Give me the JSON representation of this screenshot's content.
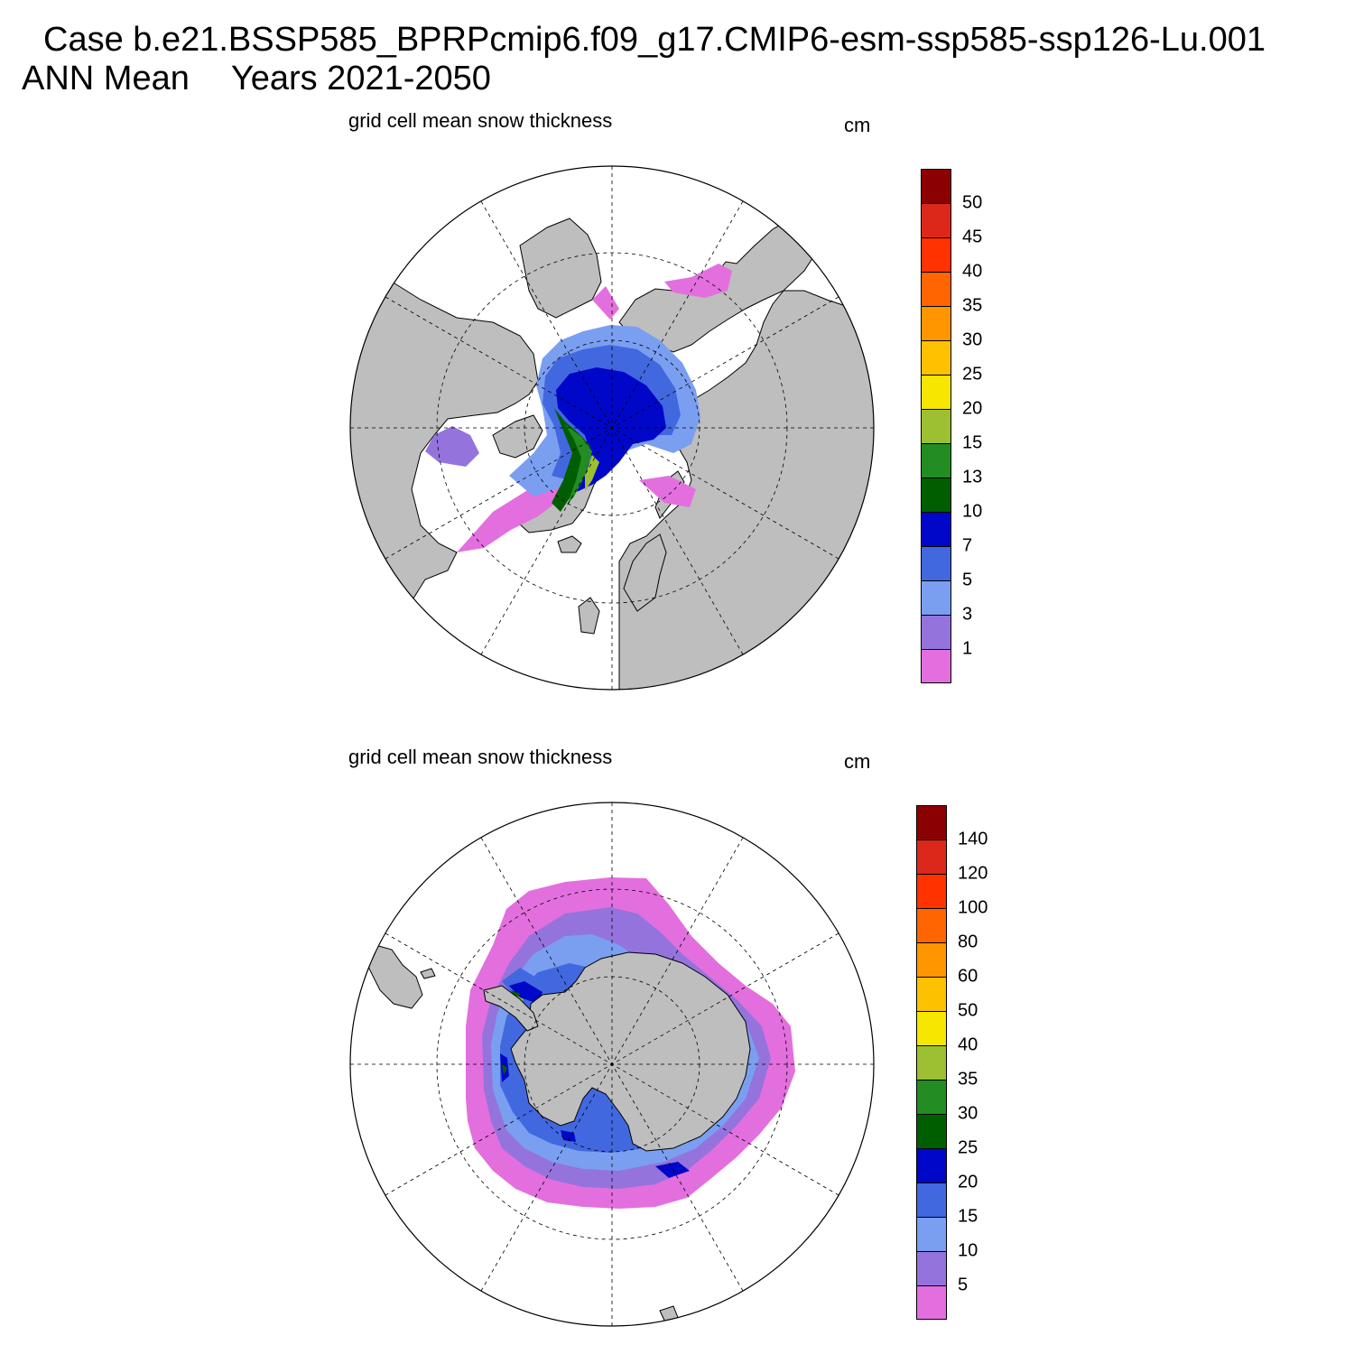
{
  "header": {
    "case_line": "Case b.e21.BSSP585_BPRPcmip6.f09_g17.CMIP6-esm-ssp585-ssp126-Lu.001",
    "period": "ANN Mean",
    "years": "Years 2021-2050"
  },
  "colors": {
    "land": "#bebebe",
    "ocean_no_data": "#ffffff",
    "palette": [
      "#e36fde",
      "#9474dc",
      "#7b9ff0",
      "#4268e0",
      "#0007c8",
      "#005e00",
      "#238c23",
      "#9dc032",
      "#f6e600",
      "#fdc100",
      "#ff9600",
      "#ff6500",
      "#ff3200",
      "#dc281b",
      "#8b0000"
    ]
  },
  "panels": [
    {
      "id": "north",
      "hemisphere": "Northern",
      "title": "grid cell mean snow thickness",
      "units": "cm",
      "colorbar_levels": [
        "1",
        "3",
        "5",
        "7",
        "10",
        "13",
        "15",
        "20",
        "25",
        "30",
        "35",
        "40",
        "45",
        "50"
      ]
    },
    {
      "id": "south",
      "hemisphere": "Southern",
      "title": "grid cell mean snow thickness",
      "units": "cm",
      "colorbar_levels": [
        "5",
        "10",
        "15",
        "20",
        "25",
        "30",
        "35",
        "40",
        "50",
        "60",
        "80",
        "100",
        "120",
        "140"
      ]
    }
  ]
}
